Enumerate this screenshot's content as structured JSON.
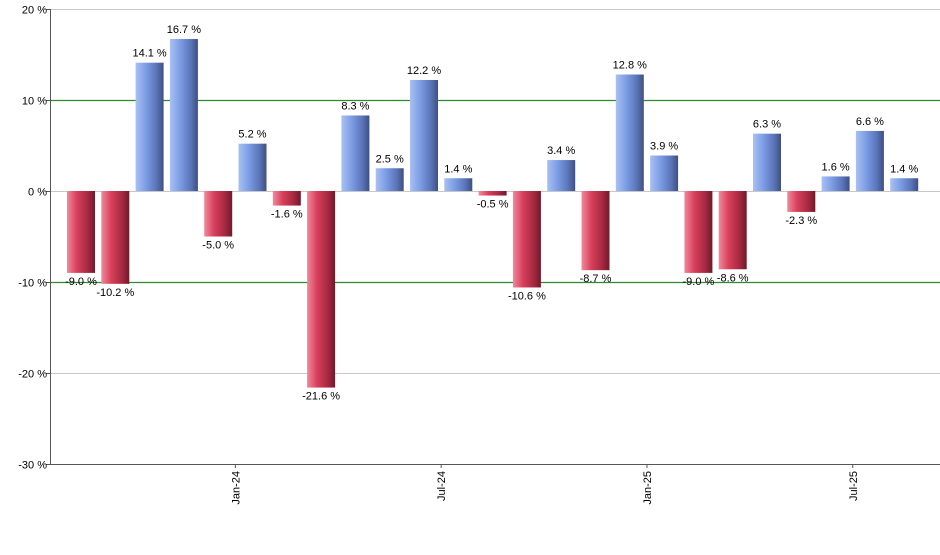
{
  "chart_data": {
    "type": "bar",
    "title": "",
    "xlabel": "",
    "ylabel": "",
    "ylim": [
      -30,
      20
    ],
    "y_ticks": [
      20,
      10,
      0,
      -10,
      -20,
      -30
    ],
    "y_tick_labels": [
      "20 %",
      "10 %",
      "0 %",
      "-10 %",
      "-20 %",
      "-30 %"
    ],
    "reference_lines": [
      10,
      -10
    ],
    "x_tick_labels": [
      {
        "label": "Jan-24",
        "after_bar_index": 4
      },
      {
        "label": "Jul-24",
        "after_bar_index": 10
      },
      {
        "label": "Jan-25",
        "after_bar_index": 16
      },
      {
        "label": "Jul-25",
        "after_bar_index": 22
      }
    ],
    "values": [
      -9.0,
      -10.2,
      14.1,
      16.7,
      -5.0,
      5.2,
      -1.6,
      -21.6,
      8.3,
      2.5,
      12.2,
      1.4,
      -0.5,
      -10.6,
      3.4,
      -8.7,
      12.8,
      3.9,
      -9.0,
      -8.6,
      6.3,
      -2.3,
      1.6,
      6.6,
      1.4
    ],
    "labels": [
      "-9.0 %",
      "-10.2 %",
      "14.1 %",
      "16.7 %",
      "-5.0 %",
      "5.2 %",
      "-1.6 %",
      "-21.6 %",
      "8.3 %",
      "2.5 %",
      "12.2 %",
      "1.4 %",
      "-0.5 %",
      "-10.6 %",
      "3.4 %",
      "-8.7 %",
      "12.8 %",
      "3.9 %",
      "-9.0 %",
      "-8.6 %",
      "6.3 %",
      "-2.3 %",
      "1.6 %",
      "6.6 %",
      "1.4 %"
    ],
    "grid": true,
    "legend": "none",
    "colors": {
      "positive": "#6f8fd8",
      "negative": "#c8324e",
      "reference_line": "#2e8b2e",
      "gridline": "#c8c8c8",
      "axis": "#555555"
    }
  }
}
